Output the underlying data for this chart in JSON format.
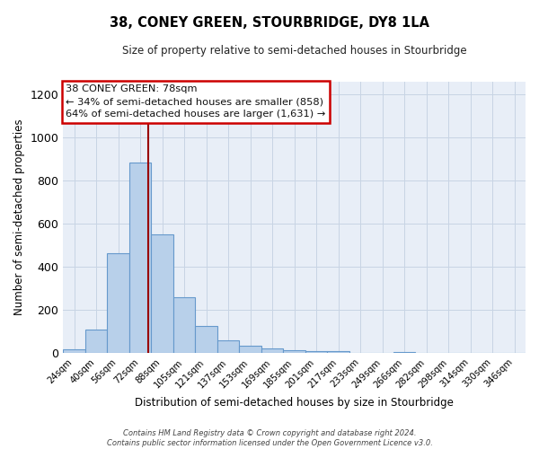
{
  "title": "38, CONEY GREEN, STOURBRIDGE, DY8 1LA",
  "subtitle": "Size of property relative to semi-detached houses in Stourbridge",
  "xlabel": "Distribution of semi-detached houses by size in Stourbridge",
  "ylabel": "Number of semi-detached properties",
  "bin_labels": [
    "24sqm",
    "40sqm",
    "56sqm",
    "72sqm",
    "88sqm",
    "105sqm",
    "121sqm",
    "137sqm",
    "153sqm",
    "169sqm",
    "185sqm",
    "201sqm",
    "217sqm",
    "233sqm",
    "249sqm",
    "266sqm",
    "282sqm",
    "298sqm",
    "314sqm",
    "330sqm",
    "346sqm"
  ],
  "bar_values": [
    18,
    110,
    465,
    885,
    550,
    260,
    125,
    60,
    35,
    20,
    15,
    10,
    8,
    1,
    0,
    5,
    0,
    0,
    1,
    0,
    0
  ],
  "bar_color": "#b8d0ea",
  "bar_edge_color": "#6699cc",
  "vline_color": "#990000",
  "vline_x_bin": 3,
  "annotation_line1": "38 CONEY GREEN: 78sqm",
  "annotation_line2": "← 34% of semi-detached houses are smaller (858)",
  "annotation_line3": "64% of semi-detached houses are larger (1,631) →",
  "annotation_box_color": "#ffffff",
  "annotation_box_edge": "#cc0000",
  "ylim": [
    0,
    1260
  ],
  "yticks": [
    0,
    200,
    400,
    600,
    800,
    1000,
    1200
  ],
  "footer_line1": "Contains HM Land Registry data © Crown copyright and database right 2024.",
  "footer_line2": "Contains public sector information licensed under the Open Government Licence v3.0.",
  "bin_width": 16,
  "n_bins": 21,
  "bg_color": "#e8eef7",
  "grid_color": "#c8d4e4"
}
